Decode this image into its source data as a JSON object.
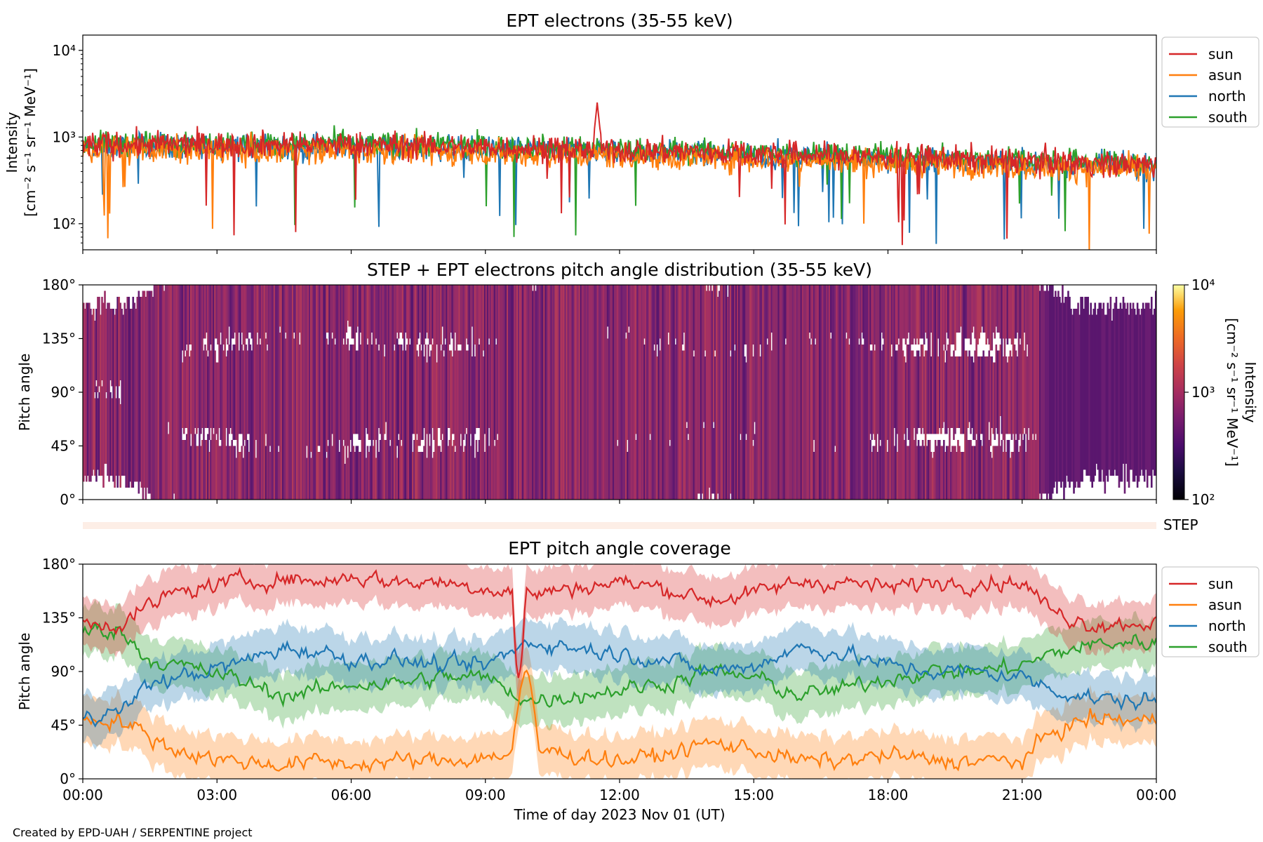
{
  "credit": "Created by EPD-UAH / SERPENTINE project",
  "chart_data": [
    {
      "type": "line",
      "title": "EPT electrons (35-55 keV)",
      "ylabel_line1": "Intensity",
      "ylabel_line2": "[cm⁻² s⁻¹ sr⁻¹ MeV⁻¹]",
      "yscale": "log",
      "ylim": [
        50,
        15000
      ],
      "yticks": [
        {
          "value": 100,
          "label": "10²"
        },
        {
          "value": 1000,
          "label": "10³"
        },
        {
          "value": 10000,
          "label": "10⁴"
        }
      ],
      "xlim_hours": [
        0,
        24
      ],
      "legend_position": "outside-right",
      "series": [
        {
          "name": "sun",
          "color": "#d62728",
          "base": 820,
          "spread": 0.13,
          "event_hour": 11.5,
          "event_peak": 2500
        },
        {
          "name": "asun",
          "color": "#ff7f0e",
          "base": 700,
          "spread": 0.13
        },
        {
          "name": "north",
          "color": "#1f77b4",
          "base": 780,
          "spread": 0.12
        },
        {
          "name": "south",
          "color": "#2ca02c",
          "base": 840,
          "spread": 0.12
        }
      ]
    },
    {
      "type": "heatmap",
      "title": "STEP + EPT electrons pitch angle distribution (35-55 keV)",
      "ylabel": "Pitch angle",
      "ylim": [
        0,
        180
      ],
      "yticks": [
        "0°",
        "45°",
        "90°",
        "135°",
        "180°"
      ],
      "xlim_hours": [
        0,
        24
      ],
      "colorbar": {
        "scale": "log",
        "range": [
          100,
          10000
        ],
        "ticks": [
          {
            "value": 100,
            "label": "10²"
          },
          {
            "value": 1000,
            "label": "10³"
          },
          {
            "value": 10000,
            "label": "10⁴"
          }
        ],
        "label_line1": "Intensity",
        "label_line2": "[cm⁻² s⁻¹ sr⁻¹ MeV⁻¹]",
        "colormap": "inferno"
      }
    },
    {
      "type": "heatmap",
      "label": "STEP",
      "color": "#fdeee6"
    },
    {
      "type": "area",
      "title": "EPT pitch angle coverage",
      "ylabel": "Pitch angle",
      "ylim": [
        0,
        180
      ],
      "yticks": [
        "0°",
        "45°",
        "90°",
        "135°",
        "180°"
      ],
      "xlabel": "Time of day 2023 Nov 01 (UT)",
      "xticks": [
        "00:00",
        "03:00",
        "06:00",
        "09:00",
        "12:00",
        "15:00",
        "18:00",
        "21:00",
        "00:00"
      ],
      "legend_position": "outside-right",
      "series": [
        {
          "name": "sun",
          "color": "#d62728",
          "anchors": [
            [
              0,
              130
            ],
            [
              0.8,
              130
            ],
            [
              2,
              155
            ],
            [
              3.3,
              165
            ],
            [
              4.5,
              168
            ],
            [
              5.3,
              165
            ],
            [
              6,
              170
            ],
            [
              7,
              165
            ],
            [
              8,
              165
            ],
            [
              9,
              160
            ],
            [
              10,
              155
            ],
            [
              11,
              160
            ],
            [
              12,
              165
            ],
            [
              13,
              160
            ],
            [
              14,
              150
            ],
            [
              15,
              155
            ],
            [
              16,
              165
            ],
            [
              17,
              165
            ],
            [
              18,
              160
            ],
            [
              19,
              165
            ],
            [
              20,
              165
            ],
            [
              21,
              165
            ],
            [
              21.7,
              140
            ],
            [
              22.5,
              130
            ],
            [
              23,
              130
            ],
            [
              24,
              132
            ]
          ]
        },
        {
          "name": "asun",
          "color": "#ff7f0e",
          "anchors": [
            [
              0,
              50
            ],
            [
              0.8,
              50
            ],
            [
              2,
              25
            ],
            [
              3.3,
              15
            ],
            [
              4.5,
              12
            ],
            [
              5.3,
              15
            ],
            [
              6,
              12
            ],
            [
              7,
              15
            ],
            [
              8,
              15
            ],
            [
              9,
              18
            ],
            [
              10,
              25
            ],
            [
              11,
              20
            ],
            [
              12,
              15
            ],
            [
              13,
              20
            ],
            [
              14,
              30
            ],
            [
              15,
              25
            ],
            [
              16,
              15
            ],
            [
              17,
              15
            ],
            [
              18,
              20
            ],
            [
              19,
              15
            ],
            [
              20,
              15
            ],
            [
              21,
              15
            ],
            [
              21.7,
              40
            ],
            [
              22.5,
              50
            ],
            [
              23,
              50
            ],
            [
              24,
              48
            ]
          ]
        },
        {
          "name": "north",
          "color": "#1f77b4",
          "anchors": [
            [
              0,
              55
            ],
            [
              0.8,
              55
            ],
            [
              1.5,
              80
            ],
            [
              2.5,
              88
            ],
            [
              3.3,
              95
            ],
            [
              4.5,
              110
            ],
            [
              5.5,
              105
            ],
            [
              6,
              100
            ],
            [
              7,
              100
            ],
            [
              8,
              95
            ],
            [
              9,
              95
            ],
            [
              10,
              115
            ],
            [
              11,
              110
            ],
            [
              12,
              105
            ],
            [
              13,
              100
            ],
            [
              14,
              90
            ],
            [
              15,
              95
            ],
            [
              16,
              110
            ],
            [
              17,
              105
            ],
            [
              18,
              95
            ],
            [
              19,
              90
            ],
            [
              20,
              90
            ],
            [
              21,
              85
            ],
            [
              21.7,
              75
            ],
            [
              22.5,
              68
            ],
            [
              23,
              66
            ],
            [
              24,
              65
            ]
          ]
        },
        {
          "name": "south",
          "color": "#2ca02c",
          "anchors": [
            [
              0,
              125
            ],
            [
              0.8,
              125
            ],
            [
              1.5,
              100
            ],
            [
              2.5,
              92
            ],
            [
              3.3,
              85
            ],
            [
              4.5,
              70
            ],
            [
              5.5,
              75
            ],
            [
              6,
              80
            ],
            [
              7,
              80
            ],
            [
              8,
              85
            ],
            [
              9,
              85
            ],
            [
              10,
              65
            ],
            [
              11,
              70
            ],
            [
              12,
              75
            ],
            [
              13,
              80
            ],
            [
              14,
              90
            ],
            [
              15,
              85
            ],
            [
              16,
              70
            ],
            [
              17,
              75
            ],
            [
              18,
              85
            ],
            [
              19,
              90
            ],
            [
              20,
              90
            ],
            [
              21,
              95
            ],
            [
              21.7,
              105
            ],
            [
              22.5,
              112
            ],
            [
              23,
              114
            ],
            [
              24,
              115
            ]
          ]
        }
      ]
    }
  ]
}
